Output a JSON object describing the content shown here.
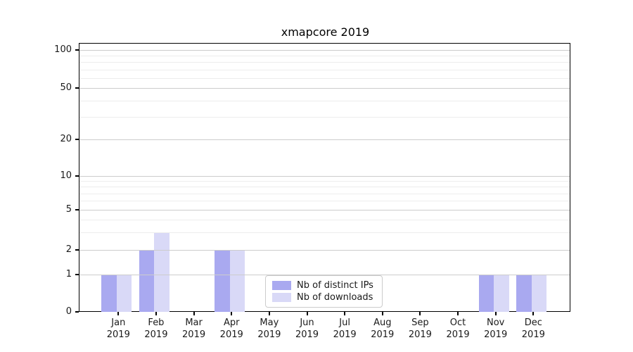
{
  "chart_data": {
    "type": "bar",
    "title": "xmapcore 2019",
    "categories": [
      "Jan",
      "Feb",
      "Mar",
      "Apr",
      "May",
      "Jun",
      "Jul",
      "Aug",
      "Sep",
      "Oct",
      "Nov",
      "Dec"
    ],
    "category_year": "2019",
    "series": [
      {
        "name": "Nb of distinct IPs",
        "color": "#a9a9f0",
        "values": [
          1,
          2,
          0,
          2,
          0,
          0,
          0,
          0,
          0,
          0,
          1,
          1
        ]
      },
      {
        "name": "Nb of downloads",
        "color": "#d9d9f7",
        "values": [
          1,
          3,
          0,
          2,
          0,
          0,
          0,
          0,
          0,
          0,
          1,
          1
        ]
      }
    ],
    "yscale": "log",
    "yticks": [
      0,
      1,
      2,
      5,
      10,
      20,
      50,
      100
    ],
    "minor_yticks": [
      3,
      4,
      6,
      7,
      8,
      9,
      30,
      40,
      60,
      70,
      80,
      90
    ],
    "ylim": [
      0,
      115
    ],
    "grid": true,
    "legend_position": "lower center inside"
  }
}
